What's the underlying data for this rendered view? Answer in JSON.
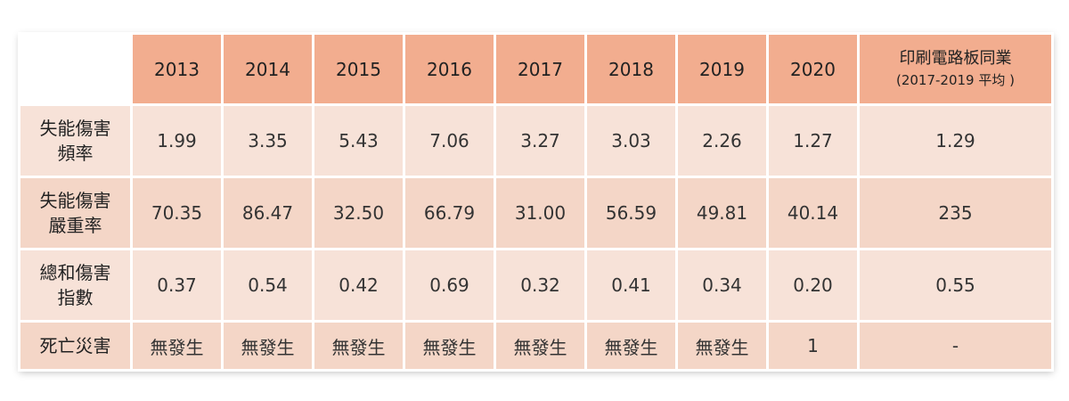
{
  "table": {
    "headers": [
      "2013",
      "2014",
      "2015",
      "2016",
      "2017",
      "2018",
      "2019",
      "2020"
    ],
    "industry_header": {
      "line1": "印刷電路板同業",
      "line2": "(2017-2019 平均 )"
    },
    "rows": [
      {
        "label_line1": "失能傷害",
        "label_line2": "頻率",
        "values": [
          "1.99",
          "3.35",
          "5.43",
          "7.06",
          "3.27",
          "3.03",
          "2.26",
          "1.27",
          "1.29"
        ]
      },
      {
        "label_line1": "失能傷害",
        "label_line2": "嚴重率",
        "values": [
          "70.35",
          "86.47",
          "32.50",
          "66.79",
          "31.00",
          "56.59",
          "49.81",
          "40.14",
          "235"
        ]
      },
      {
        "label_line1": "總和傷害",
        "label_line2": "指數",
        "values": [
          "0.37",
          "0.54",
          "0.42",
          "0.69",
          "0.32",
          "0.41",
          "0.34",
          "0.20",
          "0.55"
        ]
      },
      {
        "label_line1": "死亡災害",
        "label_line2": "",
        "values": [
          "無發生",
          "無發生",
          "無發生",
          "無發生",
          "無發生",
          "無發生",
          "無發生",
          "1",
          "-"
        ]
      }
    ]
  },
  "colors": {
    "header_bg": "#f2ad8f",
    "row_bg_light": "#f7e2d8",
    "row_bg_dark": "#f4d6c7"
  }
}
